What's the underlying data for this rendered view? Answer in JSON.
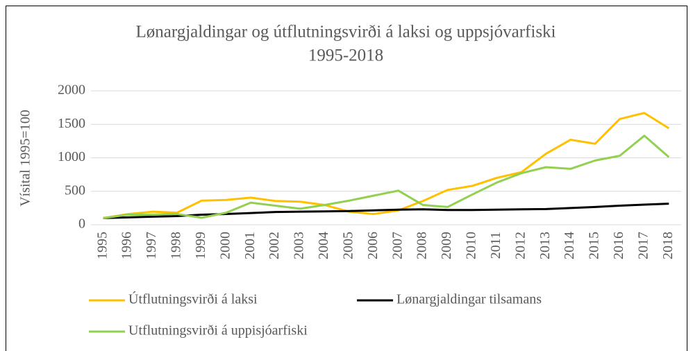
{
  "chart_data": {
    "type": "line",
    "title": "Lønargjaldingar og útflutningsvirði á laksi og uppsjóvarfiski",
    "subtitle": "1995-2018",
    "y_label": "Vísital 1995=100",
    "categories": [
      "1995",
      "1996",
      "1997",
      "1998",
      "1999",
      "2000",
      "2001",
      "2002",
      "2003",
      "2004",
      "2005",
      "2006",
      "2007",
      "2008",
      "2009",
      "2010",
      "2011",
      "2012",
      "2013",
      "2014",
      "2015",
      "2016",
      "2017",
      "2018"
    ],
    "series": [
      {
        "name": "Útflutningsvirði á laksi",
        "color": "#ffc000",
        "values": [
          100,
          160,
          195,
          180,
          360,
          370,
          405,
          355,
          345,
          295,
          195,
          160,
          215,
          355,
          520,
          580,
          700,
          785,
          1060,
          1270,
          1210,
          1580,
          1670,
          1440
        ]
      },
      {
        "name": "Lønargjaldingar tilsamans",
        "color": "#000000",
        "values": [
          100,
          110,
          120,
          130,
          150,
          160,
          175,
          190,
          195,
          200,
          205,
          215,
          225,
          230,
          220,
          220,
          225,
          230,
          235,
          250,
          265,
          285,
          300,
          315
        ]
      },
      {
        "name": "Utflutningsvirði á uppisjóarfiski",
        "color": "#92d050",
        "values": [
          100,
          150,
          150,
          160,
          105,
          180,
          330,
          285,
          240,
          295,
          360,
          435,
          510,
          295,
          265,
          450,
          630,
          770,
          860,
          835,
          960,
          1030,
          1330,
          1010
        ]
      }
    ],
    "ylim": [
      0,
      2000
    ],
    "yticks": [
      0,
      500,
      1000,
      1500,
      2000
    ],
    "grid": true,
    "legend": "bottom"
  }
}
